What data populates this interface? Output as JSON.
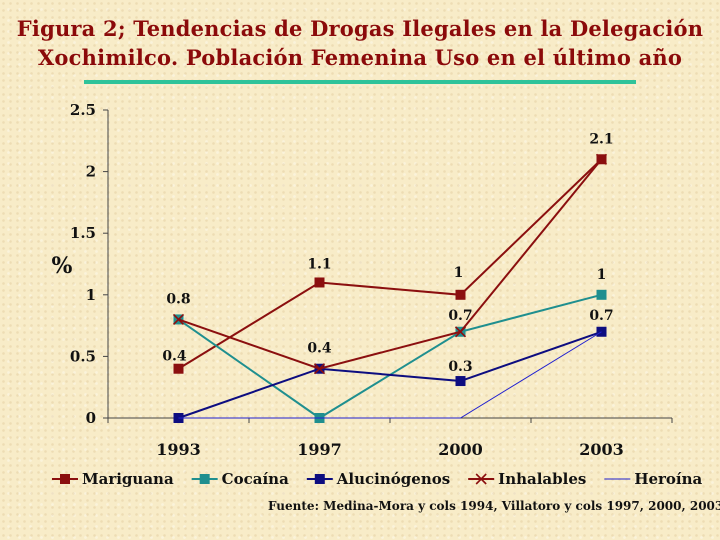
{
  "title": {
    "line1": "Figura 2; Tendencias de Drogas Ilegales en  la Delegación",
    "line2": "Xochimilco. Población Femenina Uso en el último año"
  },
  "source": "Fuente: Medina-Mora y cols 1994, Villatoro y cols 1997, 2000, 2003",
  "chart_data": {
    "type": "line",
    "ylabel": "%",
    "xlabel": "",
    "x": [
      "1993",
      "1997",
      "2000",
      "2003"
    ],
    "ylim": [
      0,
      2.5
    ],
    "yticks": [
      "0",
      "0.5",
      "1",
      "1.5",
      "2",
      "2.5"
    ],
    "legend_position": "bottom",
    "series": [
      {
        "name": "Mariguana",
        "values": [
          0.4,
          1.1,
          1,
          2.1
        ],
        "labels": [
          "0.4",
          "1.1",
          "1",
          "2.1"
        ],
        "color": "#8b0f0f",
        "marker": "square"
      },
      {
        "name": "Cocaína",
        "values": [
          0.8,
          0,
          0.7,
          1
        ],
        "labels": [
          "",
          "",
          "0.7",
          "1"
        ],
        "color": "#1f8f8f",
        "marker": "square"
      },
      {
        "name": "Alucinógenos",
        "values": [
          0,
          0.4,
          0.3,
          0.7
        ],
        "labels": [
          "",
          "0.4",
          "0.3",
          "0.7"
        ],
        "color": "#0d0d80",
        "marker": "square"
      },
      {
        "name": "Inhalables",
        "values": [
          0.8,
          0.4,
          0.7,
          2.1
        ],
        "labels": [
          "0.8",
          "",
          "",
          ""
        ],
        "color": "#8b0f0f",
        "marker": "x"
      },
      {
        "name": "Heroína",
        "values": [
          0,
          0,
          0,
          0.7
        ],
        "labels": [
          "",
          "",
          "",
          ""
        ],
        "color": "#2020d0",
        "marker": "none"
      }
    ]
  }
}
